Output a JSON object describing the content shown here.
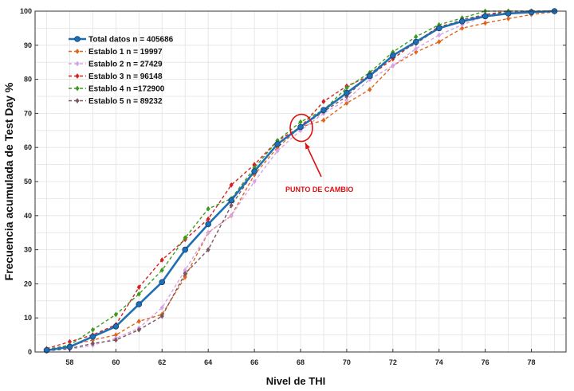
{
  "chart_data": {
    "type": "line",
    "xlabel": "Nivel de THI",
    "ylabel": "Frecuencia acumulada de Test Day %",
    "xlim": [
      56.5,
      79.5
    ],
    "ylim": [
      0,
      100
    ],
    "x_ticks": [
      58,
      60,
      62,
      64,
      66,
      68,
      70,
      72,
      74,
      76,
      78
    ],
    "y_ticks": [
      0,
      10,
      20,
      30,
      40,
      50,
      60,
      70,
      80,
      90,
      100
    ],
    "grid": true,
    "legend_position": "top-left",
    "x": [
      57,
      58,
      59,
      60,
      61,
      62,
      63,
      64,
      65,
      66,
      67,
      68,
      69,
      70,
      71,
      72,
      73,
      74,
      75,
      76,
      77,
      78,
      79
    ],
    "series": [
      {
        "name": "Total datos n = 405686",
        "color": "#1f6fb4",
        "style": "solid",
        "marker": "circle",
        "values": [
          0.5,
          1.5,
          4.5,
          7.5,
          14,
          20.5,
          30,
          37.5,
          44.5,
          53,
          61,
          66,
          71,
          76,
          81,
          87,
          91,
          95,
          97,
          98.5,
          99.3,
          99.7,
          100
        ]
      },
      {
        "name": "Establo 1 n = 19997",
        "color": "#e0651c",
        "style": "dashed",
        "marker": "diamond",
        "values": [
          0.5,
          2,
          3.5,
          5,
          9,
          11,
          22,
          35,
          40,
          52,
          60,
          66,
          68,
          73,
          77,
          84,
          88,
          91,
          95,
          96.5,
          97.8,
          99,
          99.8
        ]
      },
      {
        "name": "Establo 2 n = 27429",
        "color": "#d6a3e6",
        "style": "dashed",
        "marker": "diamond",
        "values": [
          0.5,
          0.8,
          2,
          4,
          7,
          13,
          24,
          35,
          40,
          50,
          59,
          65,
          70,
          74,
          80,
          84,
          89,
          93,
          96,
          98.5,
          99.5,
          100,
          100
        ]
      },
      {
        "name": "Establo 3 n = 96148",
        "color": "#d42020",
        "style": "dashed",
        "marker": "diamond",
        "values": [
          1,
          3,
          5,
          8,
          19,
          27,
          33,
          39,
          49,
          55,
          62,
          66,
          73.5,
          78,
          81,
          86,
          91,
          95.5,
          97,
          99,
          100,
          100,
          100
        ]
      },
      {
        "name": "Establo 4 n =172900",
        "color": "#3d9a1e",
        "style": "dashed",
        "marker": "diamond",
        "values": [
          0.8,
          2,
          6.5,
          11,
          17,
          24,
          33.5,
          42,
          45,
          54,
          62,
          67.5,
          71,
          77.5,
          82,
          88,
          92.5,
          96,
          98,
          100,
          100,
          100,
          100
        ]
      },
      {
        "name": "Establo 5 n = 89232",
        "color": "#7b5560",
        "style": "dashed",
        "marker": "diamond",
        "values": [
          0.3,
          1,
          2.5,
          3.5,
          6.5,
          10.5,
          23,
          30,
          43,
          53,
          61,
          66,
          70.5,
          75,
          81.5,
          87,
          90.5,
          95,
          97.5,
          99,
          99.5,
          99.8,
          100
        ]
      }
    ],
    "annotations": [
      {
        "text": "PUNTO DE CAMBIO",
        "color": "#dd1111",
        "target": {
          "x": 68,
          "y": 66
        }
      }
    ]
  }
}
